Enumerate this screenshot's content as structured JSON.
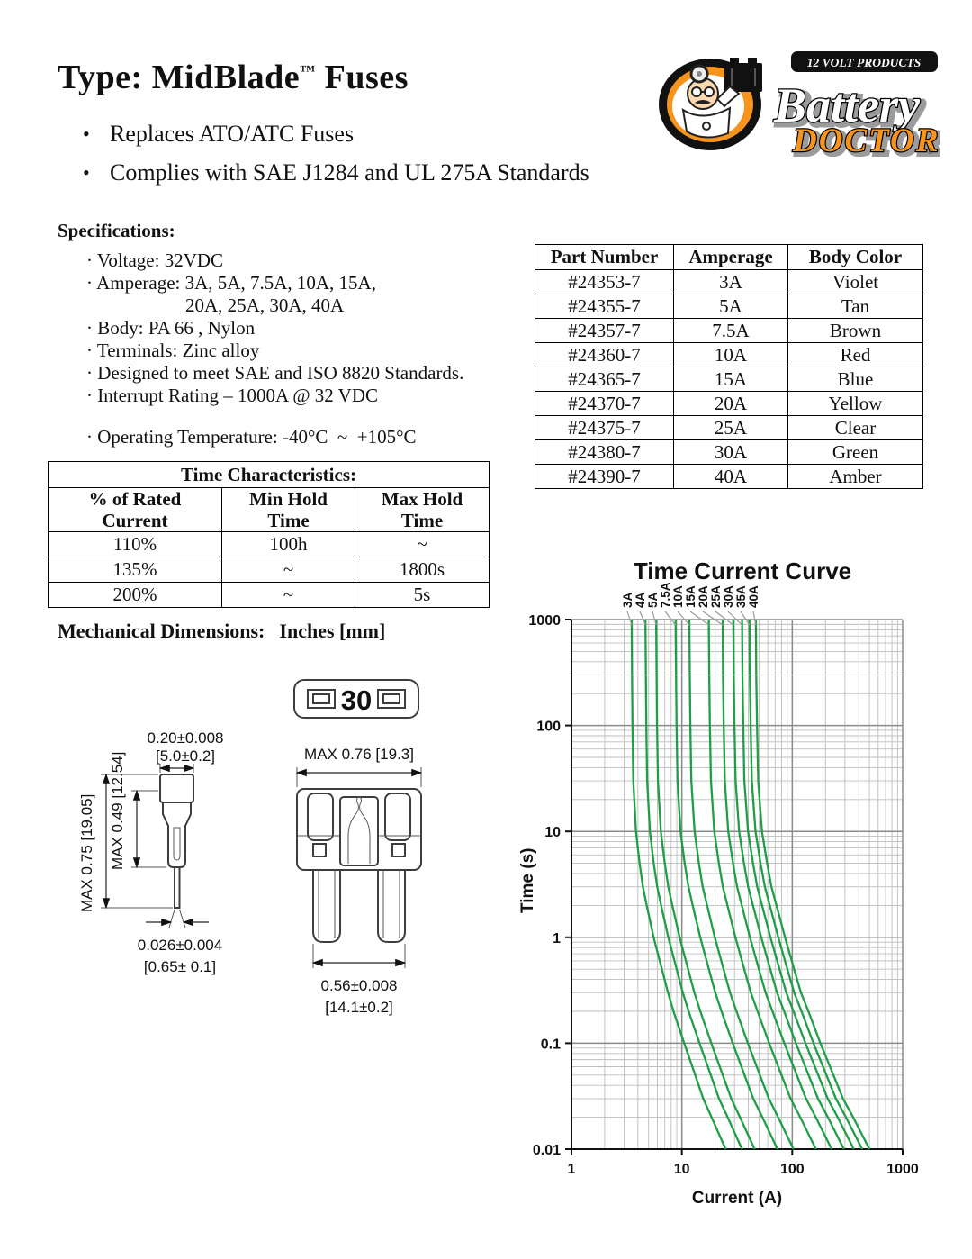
{
  "header": {
    "title_pre": "Type: MidBlade",
    "title_tm": "™",
    "title_post": " Fuses",
    "bullet_char": "•",
    "bullets": [
      "Replaces ATO/ATC Fuses",
      "Complies with SAE J1284 and UL 275A Standards"
    ]
  },
  "logo": {
    "tagline": "12 VOLT PRODUCTS",
    "word1": "Battery",
    "word2": "DOCTOR",
    "reg": "®",
    "orange": "#f7941d"
  },
  "specifications": {
    "heading": "Specifications:",
    "items": [
      "· Voltage: 32VDC",
      "· Amperage: 3A, 5A, 7.5A, 10A, 15A,",
      "20A, 25A, 30A, 40A",
      "· Body: PA 66 , Nylon",
      "· Terminals: Zinc alloy",
      "· Designed to meet SAE and ISO 8820 Standards.",
      "· Interrupt Rating – 1000A @ 32 VDC",
      "· Operating Temperature: -40°C  ~  +105°C"
    ]
  },
  "part_table": {
    "headers": [
      "Part Number",
      "Amperage",
      "Body Color"
    ],
    "rows": [
      [
        "#24353-7",
        "3A",
        "Violet"
      ],
      [
        "#24355-7",
        "5A",
        "Tan"
      ],
      [
        "#24357-7",
        "7.5A",
        "Brown"
      ],
      [
        "#24360-7",
        "10A",
        "Red"
      ],
      [
        "#24365-7",
        "15A",
        "Blue"
      ],
      [
        "#24370-7",
        "20A",
        "Yellow"
      ],
      [
        "#24375-7",
        "25A",
        "Clear"
      ],
      [
        "#24380-7",
        "30A",
        "Green"
      ],
      [
        "#24390-7",
        "40A",
        "Amber"
      ]
    ]
  },
  "time_table": {
    "title": "Time Characteristics:",
    "headers": [
      "% of Rated\nCurrent",
      "Min Hold\nTime",
      "Max Hold\nTime"
    ],
    "rows": [
      [
        "110%",
        "100h",
        "~"
      ],
      [
        "135%",
        "~",
        "1800s"
      ],
      [
        "200%",
        "~",
        "5s"
      ]
    ]
  },
  "mech": {
    "heading": "Mechanical Dimensions:",
    "units": "Inches [mm]",
    "top_view_label": "30",
    "side": {
      "width_in": "0.20±0.008",
      "width_mm": "[5.0±0.2]",
      "body_h": "MAX  0.49 [12.54]",
      "total_h": "MAX  0.75 [19.05]",
      "pin_in": "0.026±0.004",
      "pin_mm": "[0.65± 0.1]"
    },
    "front": {
      "width": "MAX  0.76 [19.3]",
      "blade_in": "0.56±0.008",
      "blade_mm": "[14.1±0.2]"
    }
  },
  "chart_data": {
    "type": "line",
    "title": "Time Current Curve",
    "xlabel": "Current (A)",
    "ylabel": "Time (s)",
    "xscale": "log",
    "yscale": "log",
    "xlim": [
      1,
      1000
    ],
    "ylim": [
      0.01,
      1000
    ],
    "x_ticks": [
      1,
      10,
      100,
      1000
    ],
    "y_ticks": [
      1000,
      100,
      10,
      1,
      0.1,
      0.01
    ],
    "grid": "log major+minor, gray on white",
    "legend_position": "rotated labels above plot with leader lines",
    "series_labels": [
      "3A",
      "4A",
      "5A",
      "7.5A",
      "10A",
      "15A",
      "20A",
      "25A",
      "30A",
      "35A",
      "40A"
    ],
    "ratings_A": [
      3,
      4,
      5,
      7.5,
      10,
      15,
      20,
      25,
      30,
      35,
      40
    ],
    "time_points_s": [
      1000,
      300,
      100,
      30,
      10,
      5,
      3,
      2,
      1,
      0.5,
      0.3,
      0.2,
      0.1,
      0.05,
      0.03,
      0.02,
      0.01
    ],
    "current_multiple_of_rating_at_3A": [
      1.17,
      1.18,
      1.19,
      1.21,
      1.28,
      1.38,
      1.48,
      1.6,
      1.85,
      2.2,
      2.5,
      2.8,
      3.5,
      4.4,
      5.2,
      6.2,
      8.3
    ],
    "current_multiple_of_rating_at_40A": [
      1.17,
      1.18,
      1.2,
      1.23,
      1.33,
      1.48,
      1.62,
      1.8,
      2.15,
      2.6,
      3.0,
      3.5,
      4.5,
      5.9,
      7.2,
      8.9,
      12.5
    ],
    "interpolation": "current(t, rating) = rating × lerp(m3A[t], m40A[t], log10(rating/3)/log10(40/3))",
    "curve_color": "#1f9e48"
  }
}
